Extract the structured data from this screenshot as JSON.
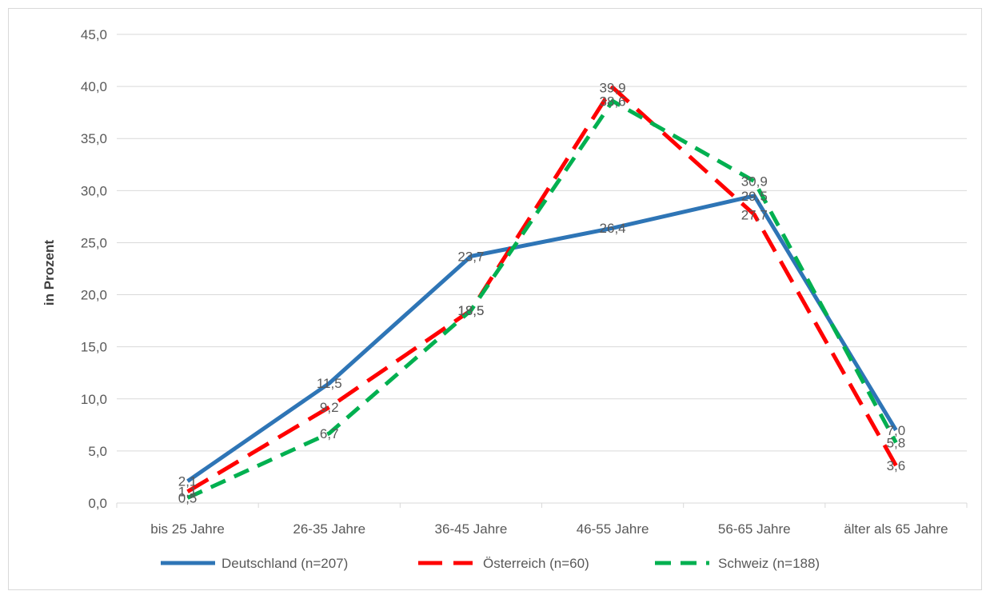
{
  "chart_data": {
    "type": "line",
    "title": "",
    "xlabel": "",
    "ylabel": "in Prozent",
    "ylim": [
      0,
      45
    ],
    "ytick_step": 5,
    "ytick_labels": [
      "0,0",
      "5,0",
      "10,0",
      "15,0",
      "20,0",
      "25,0",
      "30,0",
      "35,0",
      "40,0",
      "45,0"
    ],
    "grid": "horizontal",
    "legend_position": "bottom",
    "categories": [
      "bis 25 Jahre",
      "26-35 Jahre",
      "36-45 Jahre",
      "46-55 Jahre",
      "56-65 Jahre",
      "älter als 65 Jahre"
    ],
    "series": [
      {
        "name": "Deutschland (n=207)",
        "values": [
          2.1,
          11.5,
          23.7,
          26.4,
          29.5,
          7.0
        ],
        "labels": [
          "2,1",
          "11,5",
          "23,7",
          "26,4",
          "29,5",
          "7,0"
        ],
        "color": "#2e75b6",
        "dash": "solid"
      },
      {
        "name": "Österreich (n=60)",
        "values": [
          1.1,
          9.2,
          18.5,
          39.9,
          27.7,
          3.6
        ],
        "labels": [
          "1,1",
          "9,2",
          "18,5",
          "39,9",
          "27,7",
          "3,6"
        ],
        "color": "#ff0000",
        "dash": "long-dash"
      },
      {
        "name": "Schweiz (n=188)",
        "values": [
          0.5,
          6.7,
          18.5,
          38.6,
          30.9,
          5.8
        ],
        "labels": [
          "0,5",
          "6,7",
          "18,5",
          "38,6",
          "30,9",
          "5,8"
        ],
        "color": "#00b050",
        "dash": "dash"
      }
    ]
  }
}
